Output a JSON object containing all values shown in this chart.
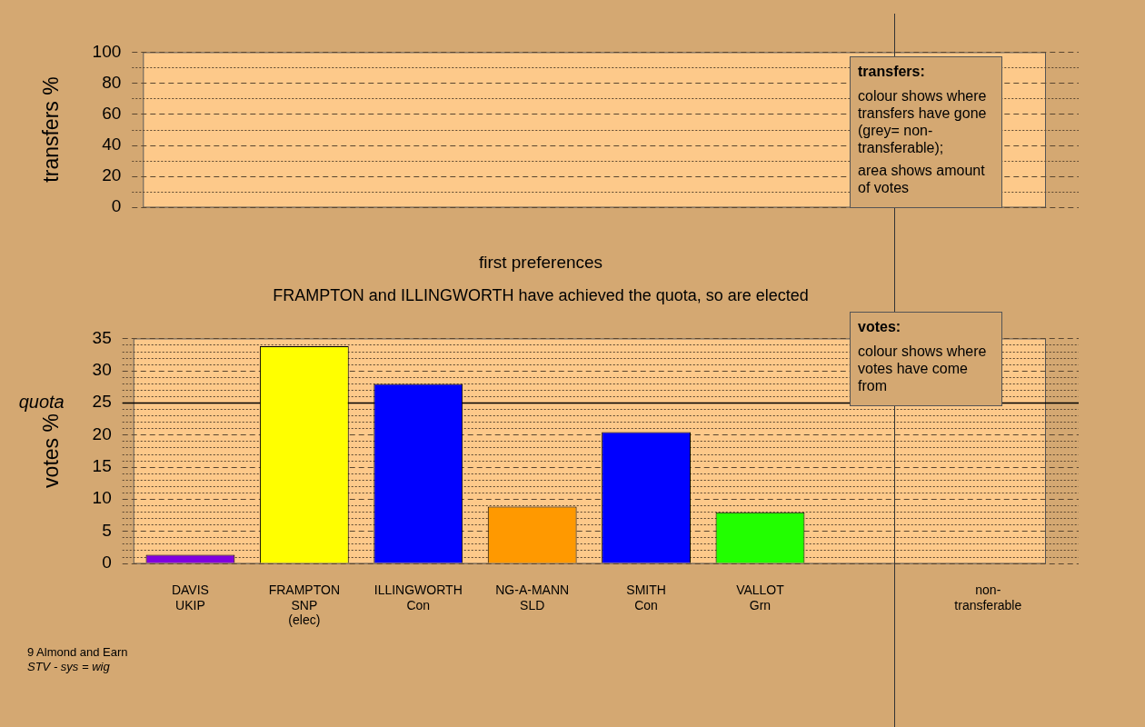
{
  "chart_data": [
    {
      "type": "bar",
      "ylabel": "transfers %",
      "categories": [
        null,
        null,
        null,
        null,
        null,
        null,
        null,
        null
      ],
      "values": [
        null,
        null,
        null,
        null,
        null,
        null,
        null,
        null
      ],
      "ylim": [
        0,
        100
      ],
      "yticks": [
        0,
        {
          "value": 10,
          "label": null
        },
        20,
        {
          "value": 30,
          "label": null
        },
        40,
        {
          "value": 50,
          "label": null
        },
        60,
        {
          "value": 70,
          "label": null
        },
        80,
        {
          "value": 90,
          "label": null
        },
        100
      ],
      "grid": true,
      "tick_labels": "y",
      "annotations": [
        "transfers:",
        "colour shows where transfers have gone (grey= non-transferable);",
        "area shows amount of votes"
      ]
    },
    {
      "type": "bar",
      "title": "first preferences",
      "subtitle": "FRAMPTON and ILLINGWORTH have achieved the quota, so are elected",
      "ylabel": "votes %",
      "categories": [
        "DAVIS\nUKIP",
        "FRAMPTON\nSNP\n(elec)",
        "ILLINGWORTH\nCon",
        "NG-A-MANN\nSLD",
        "SMITH\nCon",
        "VALLOT\nGrn",
        null,
        "non-\ntransferable"
      ],
      "values": [
        1.3,
        33.8,
        27.9,
        8.8,
        20.4,
        7.9,
        null,
        0
      ],
      "colors": [
        "#8000e0",
        "#ffff00",
        "#0000ff",
        "#ff9900",
        "#0000ff",
        "#22ff00",
        "#808080",
        "#808080"
      ],
      "ylim": [
        0,
        35
      ],
      "yticks": [
        0,
        {
          "value": 1,
          "label": null
        },
        {
          "value": 2,
          "label": null
        },
        {
          "value": 3,
          "label": null
        },
        {
          "value": 4,
          "label": null
        },
        5,
        {
          "value": 6,
          "label": null
        },
        {
          "value": 7,
          "label": null
        },
        {
          "value": 8,
          "label": null
        },
        {
          "value": 9,
          "label": null
        },
        10,
        {
          "value": 11,
          "label": null
        },
        {
          "value": 12,
          "label": null
        },
        {
          "value": 13,
          "label": null
        },
        {
          "value": 14,
          "label": null
        },
        15,
        {
          "value": 16,
          "label": null
        },
        {
          "value": 17,
          "label": null
        },
        {
          "value": 18,
          "label": null
        },
        {
          "value": 19,
          "label": null
        },
        20,
        {
          "value": 21,
          "label": null
        },
        {
          "value": 22,
          "label": null
        },
        {
          "value": 23,
          "label": null
        },
        {
          "value": 24,
          "label": null
        },
        25,
        {
          "value": 26,
          "label": null
        },
        {
          "value": 27,
          "label": null
        },
        {
          "value": 28,
          "label": null
        },
        {
          "value": 29,
          "label": null
        },
        30,
        {
          "value": 31,
          "label": null
        },
        {
          "value": 32,
          "label": null
        },
        {
          "value": 33,
          "label": null
        },
        {
          "value": 34,
          "label": null
        },
        35
      ],
      "grid": true,
      "ref_lines": [
        {
          "axis": "y",
          "value": 25,
          "label": "quota",
          "color": "#000000"
        }
      ],
      "annotations": [
        "votes:",
        "colour shows where votes have come from",
        "9 Almond and Earn",
        "STV - sys = wig"
      ]
    }
  ]
}
